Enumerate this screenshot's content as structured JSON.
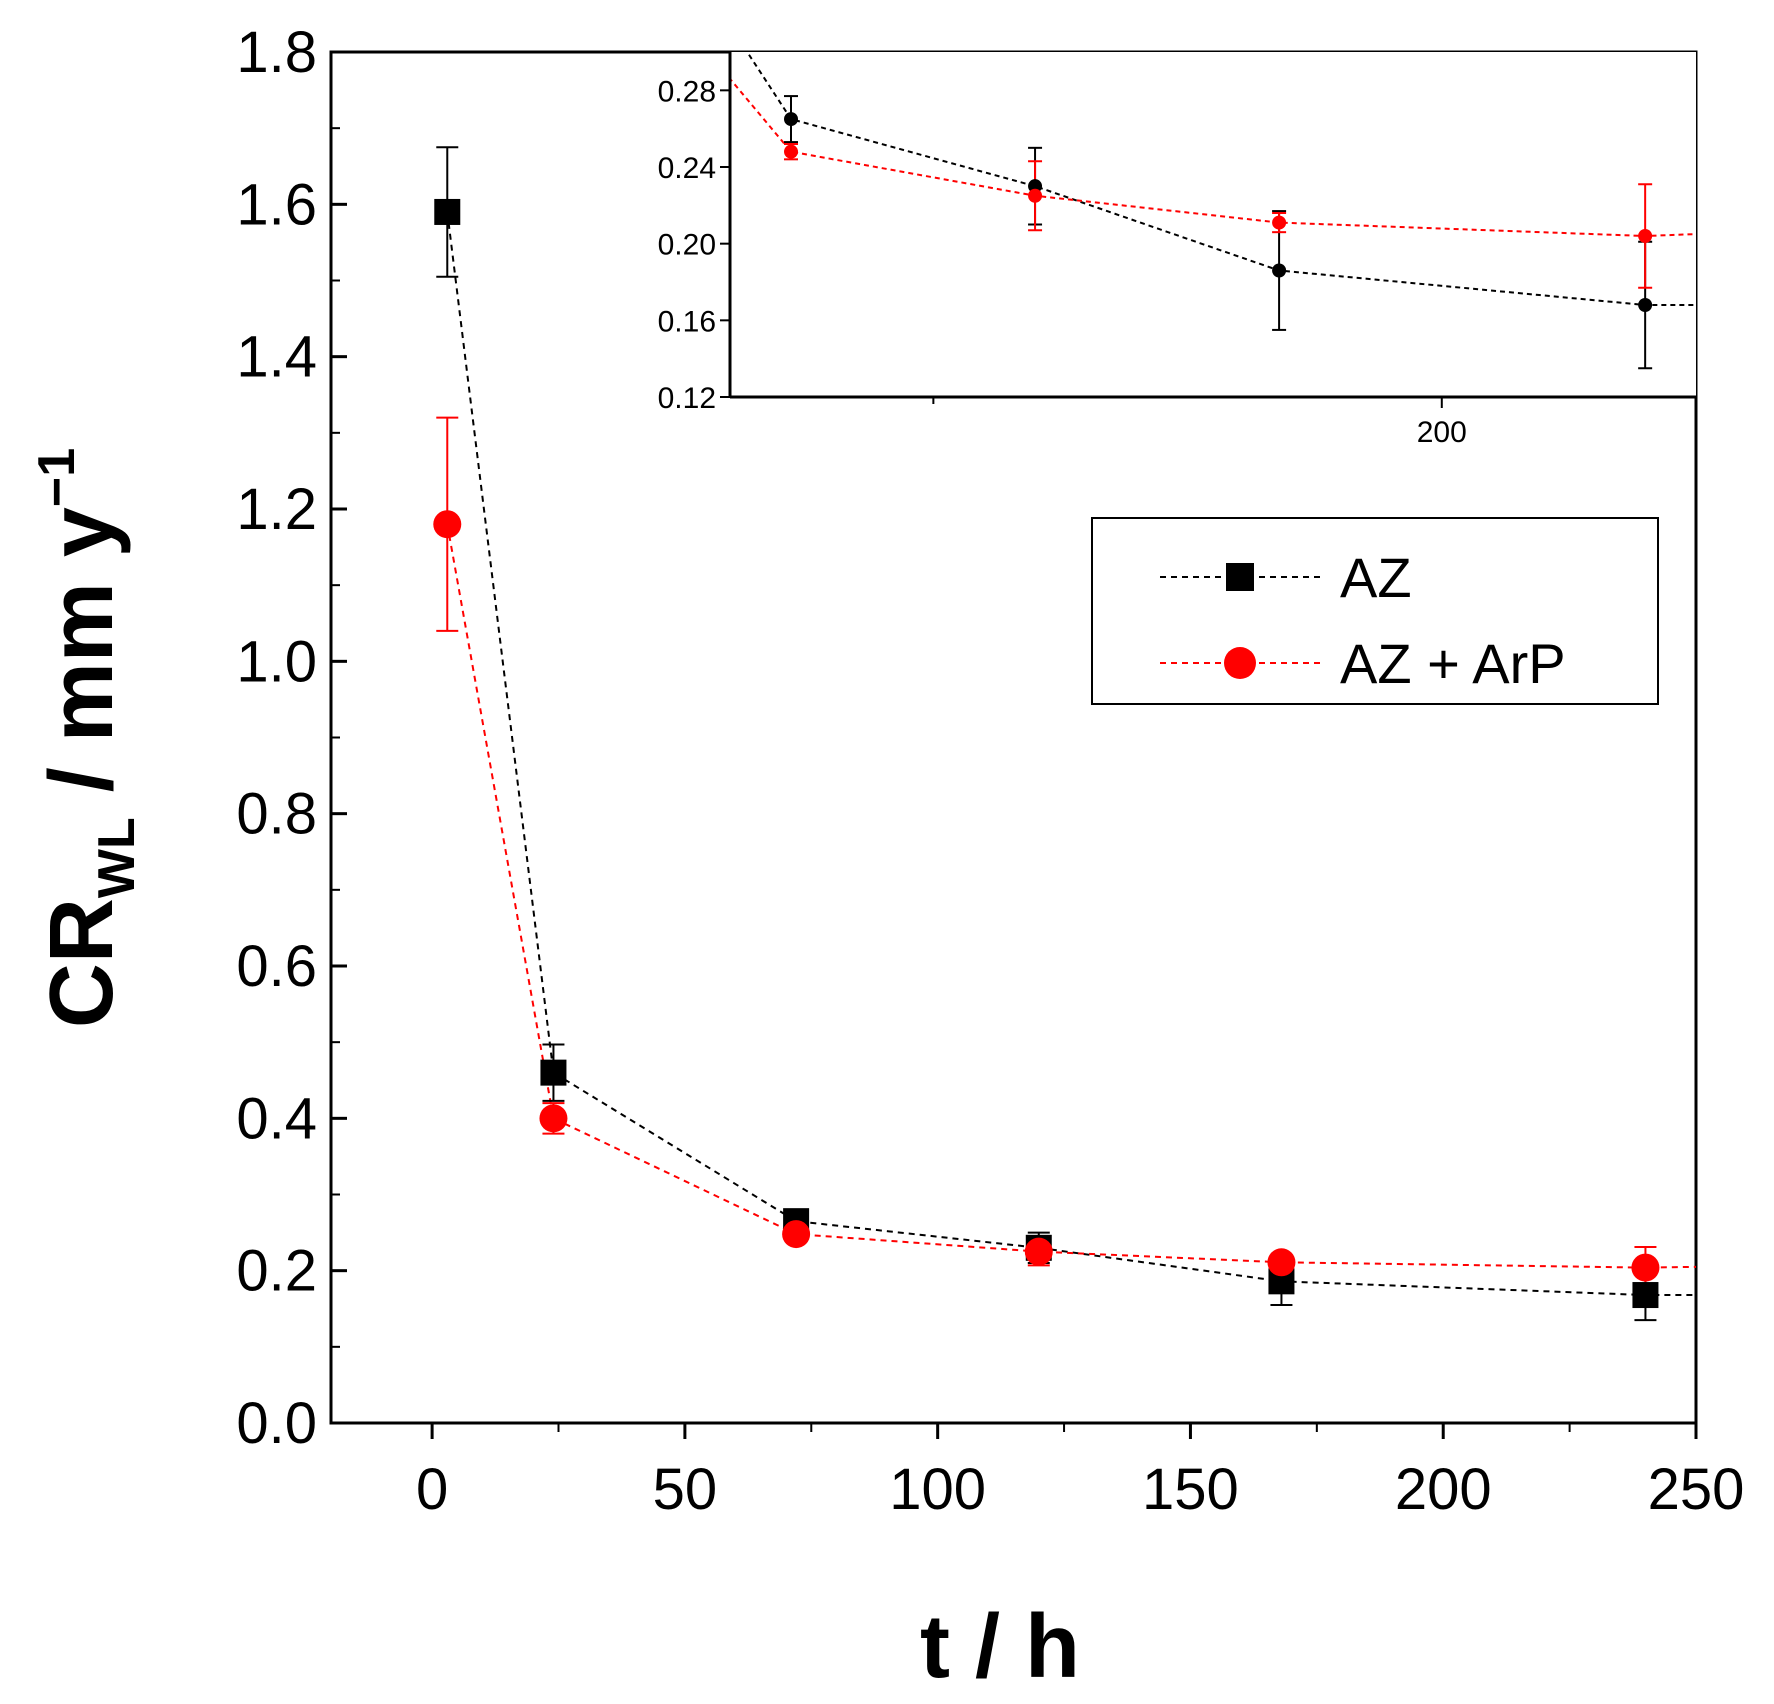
{
  "chart_data": [
    {
      "type": "line",
      "role": "main",
      "xlabel": "t / h",
      "ylabel": {
        "prefix": "CR",
        "subscript": "WL",
        "unit": " / mm y",
        "superscript": "−1"
      },
      "xlim": [
        -20,
        250
      ],
      "ylim": [
        0.0,
        1.8
      ],
      "xticks": [
        0,
        50,
        100,
        150,
        200,
        250
      ],
      "xtick_labels": [
        "0",
        "50",
        "100",
        "150",
        "200",
        "250"
      ],
      "yticks": [
        0.0,
        0.2,
        0.4,
        0.6,
        0.8,
        1.0,
        1.2,
        1.4,
        1.6,
        1.8
      ],
      "ytick_labels": [
        "0.0",
        "0.2",
        "0.4",
        "0.6",
        "0.8",
        "1.0",
        "1.2",
        "1.4",
        "1.6",
        "1.8"
      ],
      "legend": {
        "position": "right-middle"
      },
      "series": [
        {
          "name": "AZ",
          "color": "#000000",
          "marker": "square",
          "line_style": "dashed",
          "x": [
            3,
            24,
            72,
            120,
            168,
            240
          ],
          "y": [
            1.59,
            0.46,
            0.265,
            0.23,
            0.186,
            0.168
          ],
          "error": [
            0.085,
            0.037,
            0.012,
            0.02,
            0.031,
            0.033
          ],
          "tail_y": 0.168
        },
        {
          "name": "AZ + ArP",
          "color": "#ff0000",
          "marker": "circle",
          "line_style": "dashed",
          "x": [
            3,
            24,
            72,
            120,
            168,
            240
          ],
          "y": [
            1.18,
            0.4,
            0.248,
            0.225,
            0.211,
            0.204
          ],
          "error": [
            0.14,
            0.02,
            0.004,
            0.018,
            0.005,
            0.027
          ],
          "tail_y": 0.205
        }
      ]
    },
    {
      "type": "line",
      "role": "inset",
      "xlim": [
        60,
        250
      ],
      "ylim": [
        0.12,
        0.3
      ],
      "xticks": [
        200
      ],
      "xtick_labels": [
        "200"
      ],
      "yticks": [
        0.12,
        0.16,
        0.2,
        0.24,
        0.28
      ],
      "ytick_labels": [
        "0.12",
        "0.16",
        "0.20",
        "0.24",
        "0.28"
      ],
      "series_ref": "main"
    }
  ]
}
